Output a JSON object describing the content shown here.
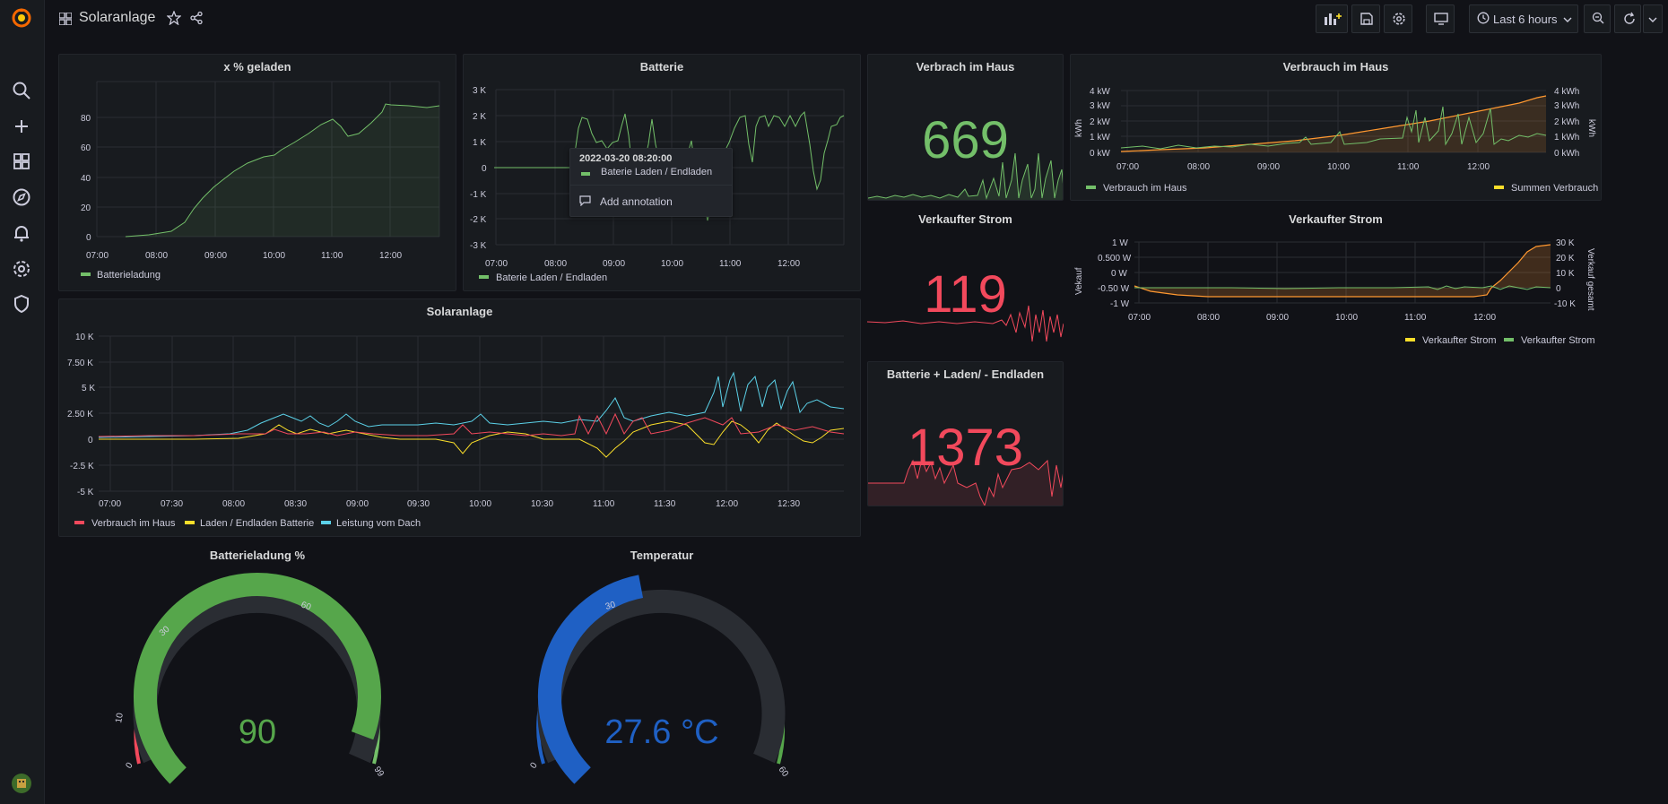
{
  "header": {
    "title": "Solaranlage",
    "time_range": "Last 6 hours"
  },
  "colors": {
    "green": "#73bf69",
    "red": "#f2495c",
    "yellow": "#fade2a",
    "orange": "#ff9830",
    "blue": "#1f60c4",
    "cyan": "#5794f2",
    "gauge_green": "#56a64b"
  },
  "sidebar": {
    "icons": [
      "grafana-logo-icon",
      "search-icon",
      "plus-icon",
      "dashboards-icon",
      "explore-icon",
      "alerting-icon",
      "configuration-icon",
      "shield-icon",
      "user-avatar-icon"
    ]
  },
  "panels": {
    "geladen": {
      "title": "x % geladen",
      "y_ticks": [
        "80",
        "60",
        "40",
        "20",
        "0"
      ],
      "x_ticks": [
        "07:00",
        "08:00",
        "09:00",
        "10:00",
        "11:00",
        "12:00"
      ],
      "legend": [
        "Batterieladung"
      ]
    },
    "batterie": {
      "title": "Batterie",
      "y_ticks": [
        "3 K",
        "2 K",
        "1 K",
        "0",
        "-1 K",
        "-2 K",
        "-3 K"
      ],
      "x_ticks": [
        "07:00",
        "08:00",
        "09:00",
        "10:00",
        "11:00",
        "12:00"
      ],
      "legend": [
        "Baterie Laden / Endladen"
      ],
      "tooltip": {
        "time": "2022-03-20 08:20:00",
        "series": "Baterie Laden / Endladen",
        "action": "Add annotation"
      }
    },
    "verbrach_stat": {
      "title": "Verbrach im Haus",
      "value": "669"
    },
    "verbrauch_chart": {
      "title": "Verbrauch im Haus",
      "y_left": [
        "4 kW",
        "3 kW",
        "2 kW",
        "1 kW",
        "0 kW"
      ],
      "y_right": [
        "4 kWh",
        "3 kWh",
        "2 kWh",
        "1 kWh",
        "0 kWh"
      ],
      "y_left_label": "kWh",
      "y_right_label": "kWh",
      "x_ticks": [
        "07:00",
        "08:00",
        "09:00",
        "10:00",
        "11:00",
        "12:00"
      ],
      "legend_left": "Verbrauch im Haus",
      "legend_right": "Summen Verbrauch"
    },
    "verkauft_stat": {
      "title": "Verkaufter Strom",
      "value": "119"
    },
    "verkauft_chart": {
      "title": "Verkaufter Strom",
      "y_left": [
        "1 W",
        "0.500 W",
        "0 W",
        "-0.50 W",
        "-1 W"
      ],
      "y_right": [
        "30 K",
        "20 K",
        "10 K",
        "0",
        "-10 K"
      ],
      "y_left_label": "Vekauf",
      "y_right_label": "Verkauf gesamt",
      "x_ticks": [
        "07:00",
        "08:00",
        "09:00",
        "10:00",
        "11:00",
        "12:00"
      ],
      "legend": [
        "Verkaufter Strom",
        "Verkaufter Strom"
      ]
    },
    "laden_stat": {
      "title": "Batterie + Laden/ - Endladen",
      "value": "1373"
    },
    "solaranlage": {
      "title": "Solaranlage",
      "y_ticks": [
        "10 K",
        "7.50 K",
        "5 K",
        "2.50 K",
        "0",
        "-2.5 K",
        "-5 K"
      ],
      "x_ticks": [
        "07:00",
        "07:30",
        "08:00",
        "08:30",
        "09:00",
        "09:30",
        "10:00",
        "10:30",
        "11:00",
        "11:30",
        "12:00",
        "12:30"
      ],
      "legend": [
        "Verbrauch im Haus",
        "Laden / Endladen Batterie",
        "Leistung vom Dach"
      ]
    },
    "gauge_batt": {
      "title": "Batterieladung %",
      "value": 90,
      "value_text": "90",
      "min": 0,
      "max": 99,
      "ticks": [
        "0",
        "10",
        "30",
        "60",
        "99"
      ]
    },
    "gauge_temp": {
      "title": "Temperatur",
      "value": 27.6,
      "value_text": "27.6 °C",
      "min": 0,
      "max": 60,
      "ticks": [
        "0",
        "30",
        "60"
      ]
    }
  }
}
